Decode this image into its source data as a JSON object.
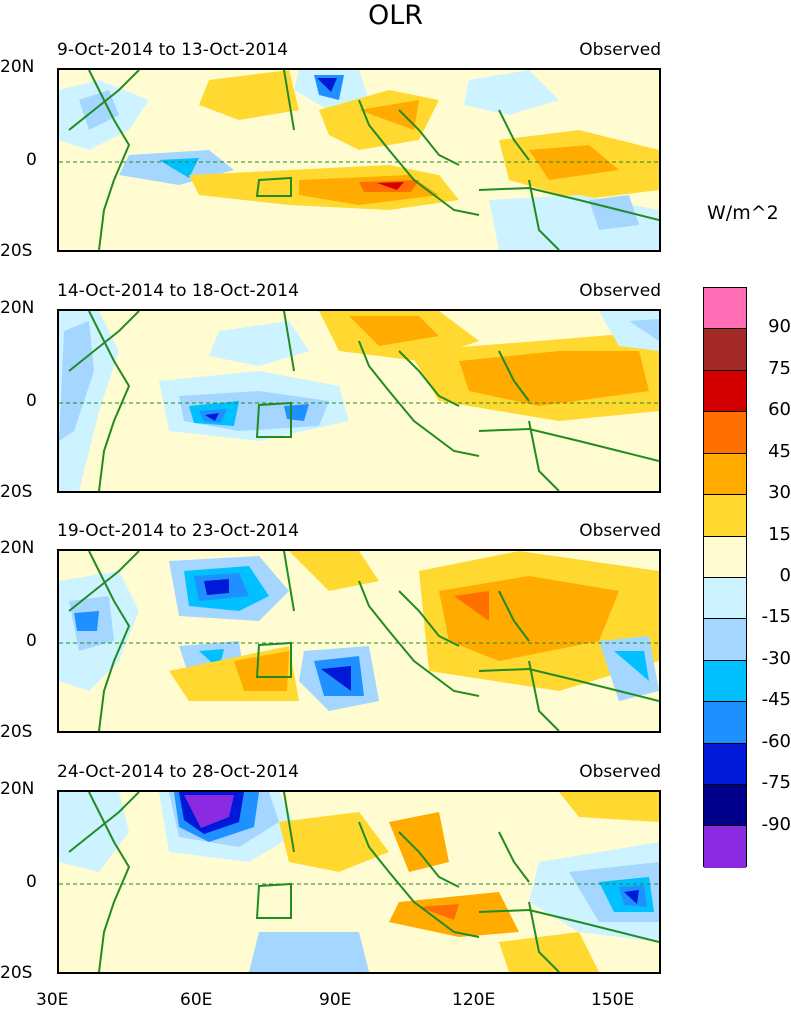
{
  "title": "OLR",
  "units": "W/m^2",
  "observed_label": "Observed",
  "panels": [
    {
      "date_range": "9-Oct-2014 to 13-Oct-2014"
    },
    {
      "date_range": "14-Oct-2014 to 18-Oct-2014"
    },
    {
      "date_range": "19-Oct-2014 to 23-Oct-2014"
    },
    {
      "date_range": "24-Oct-2014 to 28-Oct-2014"
    }
  ],
  "lat_labels": [
    "20N",
    "0",
    "20S"
  ],
  "lon_labels": [
    "30E",
    "60E",
    "90E",
    "120E",
    "150E"
  ],
  "colorbar": {
    "levels": [
      "90",
      "75",
      "60",
      "45",
      "30",
      "15",
      "0",
      "-15",
      "-30",
      "-45",
      "-60",
      "-75",
      "-90"
    ],
    "colors": [
      "#ff6db4",
      "#a52828",
      "#d40000",
      "#ff7000",
      "#ffab00",
      "#ffd92f",
      "#fffcd2",
      "#ccf3ff",
      "#a4d6ff",
      "#00c0ff",
      "#1e90ff",
      "#0019d8",
      "#00008a",
      "#8a2be2"
    ]
  }
}
